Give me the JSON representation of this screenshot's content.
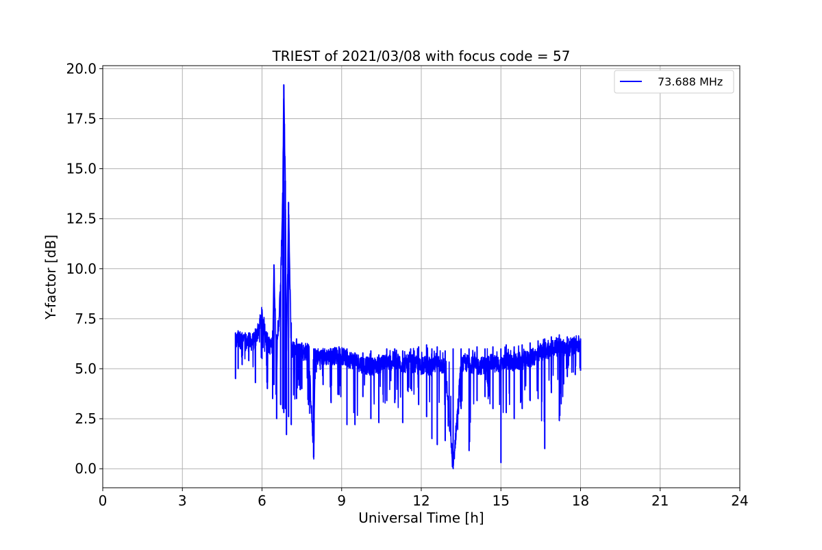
{
  "chart_data": {
    "type": "line",
    "title": "TRIEST of 2021/03/08 with focus code = 57",
    "xlabel": "Universal Time [h]",
    "ylabel": "Y-factor [dB]",
    "xlim": [
      0,
      24
    ],
    "ylim": [
      -0.95,
      20.15
    ],
    "xticks": [
      0,
      3,
      6,
      9,
      12,
      15,
      18,
      21,
      24
    ],
    "xtick_labels": [
      "0",
      "3",
      "6",
      "9",
      "12",
      "15",
      "18",
      "21",
      "24"
    ],
    "yticks": [
      0.0,
      2.5,
      5.0,
      7.5,
      10.0,
      12.5,
      15.0,
      17.5,
      20.0
    ],
    "ytick_labels": [
      "0.0",
      "2.5",
      "5.0",
      "7.5",
      "10.0",
      "12.5",
      "15.0",
      "17.5",
      "20.0"
    ],
    "grid": true,
    "legend_position": "top-right",
    "series": [
      {
        "name": "73.688 MHz",
        "color": "#0000ff",
        "x": [
          5.0,
          5.1,
          5.25,
          5.5,
          5.75,
          6.0,
          6.2,
          6.4,
          6.45,
          6.55,
          6.7,
          6.78,
          6.82,
          6.88,
          6.92,
          7.0,
          7.1,
          7.3,
          7.5,
          7.75,
          7.95,
          8.0,
          8.3,
          8.6,
          8.9,
          9.2,
          9.5,
          9.8,
          10.1,
          10.4,
          10.7,
          11.0,
          11.3,
          11.6,
          11.9,
          12.2,
          12.4,
          12.6,
          12.9,
          13.2,
          13.5,
          13.8,
          14.1,
          14.4,
          14.7,
          15.0,
          15.2,
          15.5,
          15.8,
          16.1,
          16.4,
          16.65,
          16.9,
          17.2,
          17.5,
          17.8,
          18.0
        ],
        "y": [
          6.3,
          6.5,
          6.4,
          6.3,
          6.4,
          7.7,
          6.2,
          6.1,
          10.2,
          5.2,
          9.2,
          13.8,
          19.2,
          14.4,
          5.0,
          13.3,
          6.0,
          6.0,
          5.8,
          5.9,
          0.6,
          5.6,
          5.6,
          5.6,
          5.7,
          5.5,
          5.4,
          5.2,
          5.1,
          5.2,
          5.3,
          5.4,
          5.2,
          5.3,
          5.1,
          5.2,
          5.0,
          5.3,
          5.1,
          0.0,
          5.2,
          5.3,
          5.1,
          5.2,
          5.3,
          5.1,
          5.4,
          5.3,
          5.4,
          5.5,
          5.7,
          5.9,
          6.0,
          6.1,
          6.0,
          6.2,
          6.2
        ],
        "ymin": [
          4.5,
          5.0,
          5.2,
          5.4,
          4.3,
          5.5,
          4.0,
          3.5,
          4.2,
          2.5,
          3.2,
          3.0,
          2.8,
          3.0,
          1.7,
          2.6,
          2.2,
          3.5,
          4.0,
          3.2,
          0.6,
          4.5,
          4.2,
          3.3,
          3.7,
          2.2,
          2.2,
          3.6,
          2.5,
          2.3,
          3.4,
          3.3,
          2.3,
          4.0,
          3.2,
          2.6,
          1.5,
          1.2,
          1.4,
          0.0,
          3.0,
          0.9,
          3.4,
          3.6,
          3.0,
          0.3,
          2.8,
          2.5,
          3.0,
          3.4,
          3.5,
          1.0,
          3.8,
          2.4,
          4.6,
          4.7,
          4.9
        ],
        "ymax": [
          6.8,
          6.9,
          6.7,
          6.8,
          7.0,
          7.7,
          6.8,
          6.9,
          10.2,
          6.7,
          9.2,
          13.8,
          19.2,
          14.4,
          6.8,
          13.3,
          7.3,
          6.5,
          6.3,
          6.2,
          6.0,
          6.0,
          5.9,
          6.0,
          6.1,
          6.0,
          5.8,
          5.8,
          5.9,
          5.7,
          6.0,
          6.0,
          5.9,
          6.0,
          6.1,
          6.2,
          6.0,
          6.1,
          5.9,
          6.0,
          6.0,
          6.0,
          6.1,
          6.0,
          6.1,
          6.0,
          6.2,
          6.1,
          6.2,
          6.3,
          6.4,
          6.5,
          6.6,
          6.7,
          6.6,
          6.5,
          6.5
        ]
      }
    ]
  }
}
